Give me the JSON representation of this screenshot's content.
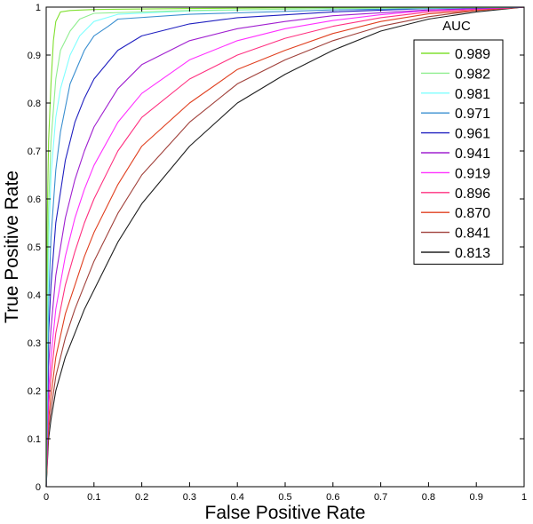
{
  "chart_data": {
    "type": "line",
    "title": "",
    "xlabel": "False Positive Rate",
    "ylabel": "True Positive Rate",
    "xlim": [
      0,
      1
    ],
    "ylim": [
      0,
      1
    ],
    "x_ticks": [
      "0",
      "0.1",
      "0.2",
      "0.3",
      "0.4",
      "0.5",
      "0.6",
      "0.7",
      "0.8",
      "0.9",
      "1"
    ],
    "y_ticks": [
      "0",
      "0.1",
      "0.2",
      "0.3",
      "0.4",
      "0.5",
      "0.6",
      "0.7",
      "0.8",
      "0.9",
      "1"
    ],
    "grid": false,
    "legend_title": "AUC",
    "legend_position": "top-right",
    "series": [
      {
        "name": "0.989",
        "color": "#80e030",
        "x": [
          0,
          0.002,
          0.005,
          0.01,
          0.015,
          0.02,
          0.03,
          0.05,
          0.1,
          0.3,
          0.6,
          1
        ],
        "y": [
          0,
          0.55,
          0.72,
          0.84,
          0.93,
          0.97,
          0.99,
          0.993,
          0.995,
          0.997,
          0.999,
          1
        ]
      },
      {
        "name": "0.982",
        "color": "#90ee90",
        "x": [
          0,
          0.002,
          0.005,
          0.01,
          0.02,
          0.03,
          0.05,
          0.07,
          0.1,
          0.3,
          0.6,
          1
        ],
        "y": [
          0,
          0.4,
          0.58,
          0.72,
          0.85,
          0.91,
          0.95,
          0.975,
          0.987,
          0.993,
          0.997,
          1
        ]
      },
      {
        "name": "0.981",
        "color": "#80ffff",
        "x": [
          0,
          0.005,
          0.01,
          0.02,
          0.03,
          0.05,
          0.07,
          0.1,
          0.15,
          0.3,
          0.6,
          1
        ],
        "y": [
          0,
          0.5,
          0.65,
          0.77,
          0.83,
          0.9,
          0.94,
          0.97,
          0.985,
          0.992,
          0.997,
          1
        ]
      },
      {
        "name": "0.971",
        "color": "#3a8fd0",
        "x": [
          0,
          0.005,
          0.01,
          0.02,
          0.03,
          0.05,
          0.08,
          0.1,
          0.13,
          0.15,
          0.3,
          0.6,
          1
        ],
        "y": [
          0,
          0.38,
          0.52,
          0.66,
          0.74,
          0.84,
          0.91,
          0.94,
          0.96,
          0.975,
          0.985,
          0.994,
          1
        ]
      },
      {
        "name": "0.961",
        "color": "#2020c0",
        "x": [
          0,
          0.005,
          0.01,
          0.02,
          0.04,
          0.06,
          0.08,
          0.1,
          0.15,
          0.2,
          0.3,
          0.4,
          0.6,
          0.8,
          1
        ],
        "y": [
          0,
          0.32,
          0.42,
          0.55,
          0.68,
          0.76,
          0.81,
          0.85,
          0.91,
          0.94,
          0.965,
          0.978,
          0.99,
          0.997,
          1
        ]
      },
      {
        "name": "0.941",
        "color": "#a020d0",
        "x": [
          0,
          0.005,
          0.01,
          0.02,
          0.04,
          0.06,
          0.08,
          0.1,
          0.15,
          0.2,
          0.3,
          0.4,
          0.5,
          0.6,
          0.8,
          1
        ],
        "y": [
          0,
          0.25,
          0.33,
          0.44,
          0.56,
          0.64,
          0.7,
          0.75,
          0.83,
          0.88,
          0.93,
          0.955,
          0.97,
          0.982,
          0.994,
          1
        ]
      },
      {
        "name": "0.919",
        "color": "#ff30ff",
        "x": [
          0,
          0.005,
          0.01,
          0.02,
          0.04,
          0.06,
          0.08,
          0.1,
          0.15,
          0.2,
          0.3,
          0.4,
          0.5,
          0.6,
          0.7,
          0.8,
          1
        ],
        "y": [
          0,
          0.2,
          0.27,
          0.37,
          0.48,
          0.56,
          0.62,
          0.67,
          0.76,
          0.82,
          0.89,
          0.93,
          0.955,
          0.972,
          0.984,
          0.993,
          1
        ]
      },
      {
        "name": "0.896",
        "color": "#ff3080",
        "x": [
          0,
          0.005,
          0.01,
          0.02,
          0.04,
          0.06,
          0.08,
          0.1,
          0.15,
          0.2,
          0.3,
          0.4,
          0.5,
          0.6,
          0.7,
          0.8,
          1
        ],
        "y": [
          0,
          0.17,
          0.23,
          0.32,
          0.42,
          0.49,
          0.55,
          0.6,
          0.7,
          0.77,
          0.85,
          0.9,
          0.935,
          0.96,
          0.978,
          0.99,
          1
        ]
      },
      {
        "name": "0.870",
        "color": "#e04020",
        "x": [
          0,
          0.005,
          0.01,
          0.02,
          0.04,
          0.06,
          0.08,
          0.1,
          0.15,
          0.2,
          0.3,
          0.4,
          0.5,
          0.6,
          0.7,
          0.8,
          1
        ],
        "y": [
          0,
          0.14,
          0.19,
          0.27,
          0.36,
          0.42,
          0.48,
          0.53,
          0.63,
          0.71,
          0.8,
          0.87,
          0.91,
          0.945,
          0.97,
          0.986,
          1
        ]
      },
      {
        "name": "0.841",
        "color": "#a0403a",
        "x": [
          0,
          0.005,
          0.01,
          0.02,
          0.04,
          0.06,
          0.08,
          0.1,
          0.15,
          0.2,
          0.3,
          0.4,
          0.5,
          0.6,
          0.7,
          0.8,
          0.9,
          1
        ],
        "y": [
          0,
          0.12,
          0.16,
          0.23,
          0.31,
          0.37,
          0.42,
          0.47,
          0.57,
          0.65,
          0.76,
          0.84,
          0.89,
          0.93,
          0.96,
          0.98,
          0.993,
          1
        ]
      },
      {
        "name": "0.813",
        "color": "#202020",
        "x": [
          0,
          0.005,
          0.01,
          0.02,
          0.04,
          0.06,
          0.08,
          0.1,
          0.15,
          0.2,
          0.3,
          0.4,
          0.5,
          0.6,
          0.7,
          0.8,
          0.9,
          1
        ],
        "y": [
          0,
          0.1,
          0.14,
          0.2,
          0.27,
          0.32,
          0.37,
          0.41,
          0.51,
          0.59,
          0.71,
          0.8,
          0.86,
          0.91,
          0.95,
          0.975,
          0.99,
          1
        ]
      }
    ]
  }
}
